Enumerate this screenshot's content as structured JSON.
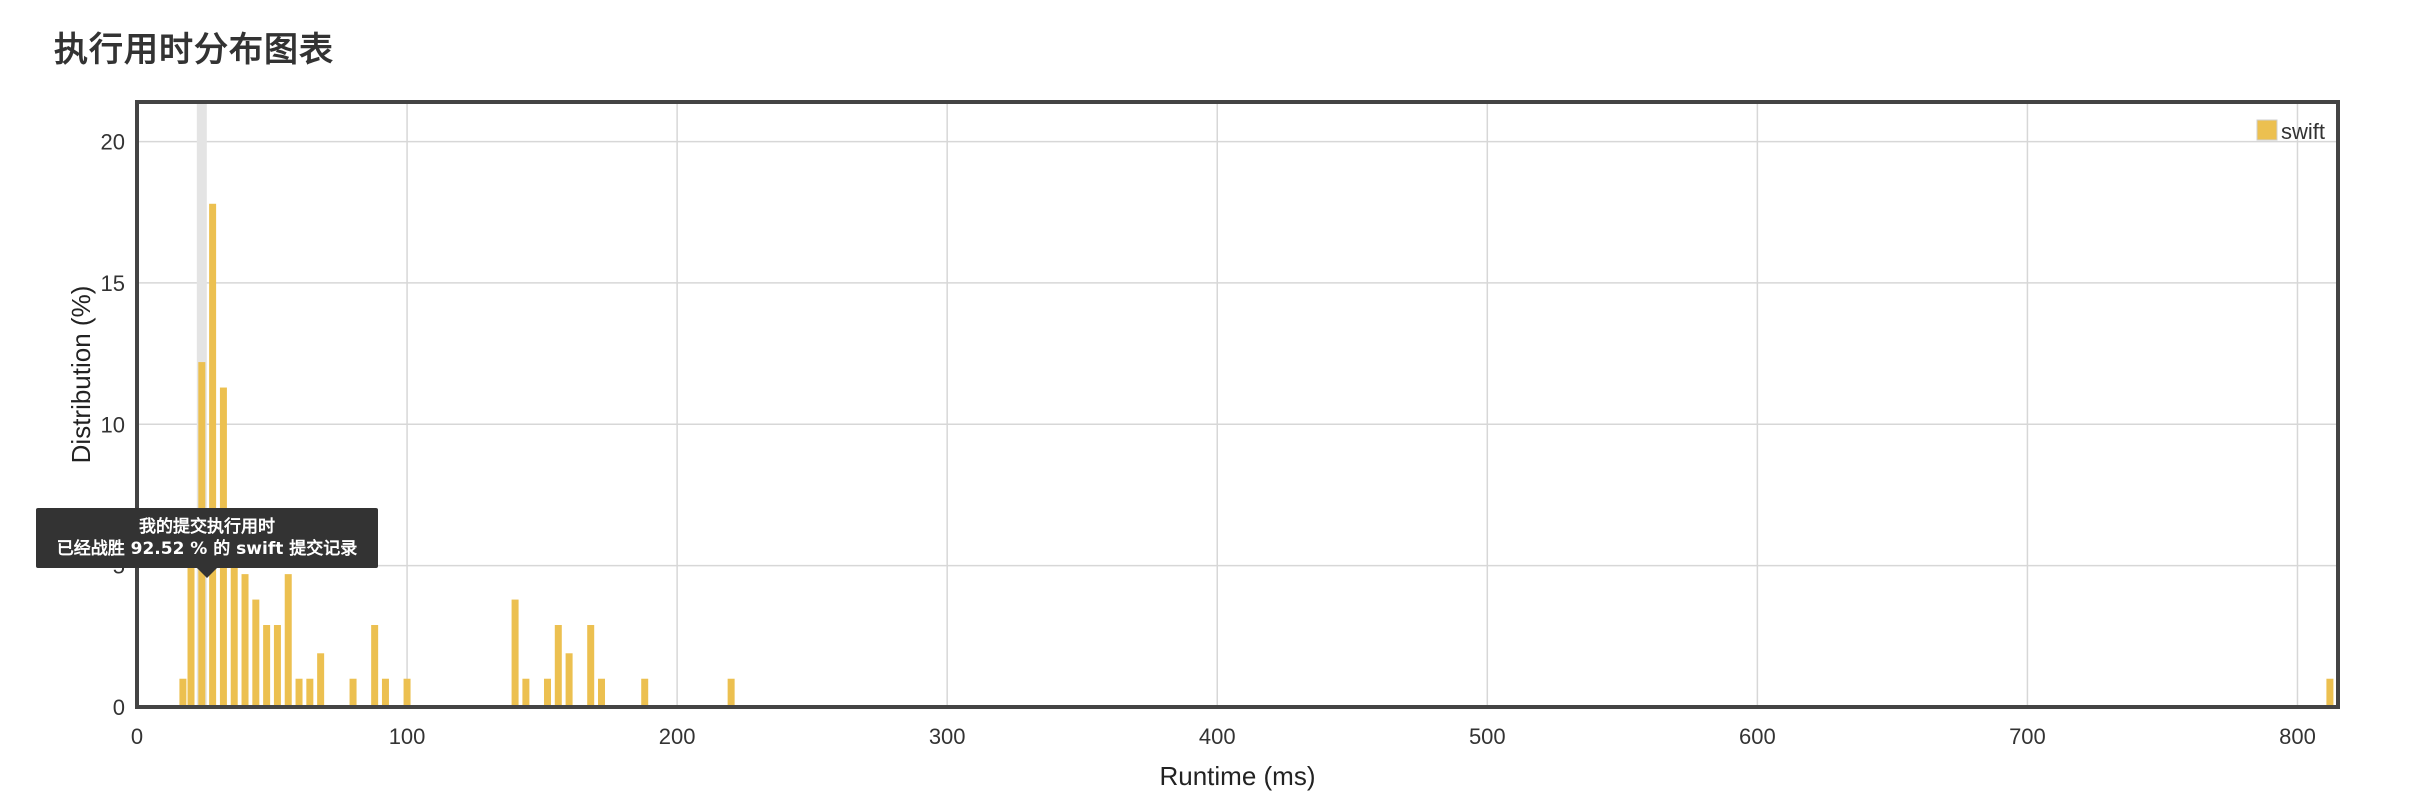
{
  "page": {
    "title": "执行用时分布图表"
  },
  "tooltip": {
    "line1": "我的提交执行用时",
    "line2": "已经战胜 92.52 % 的 swift 提交记录"
  },
  "colors": {
    "bar": "#ecc050",
    "highlight": "#e4e4e4",
    "grid": "#d7d7d7",
    "frame": "#444444"
  },
  "chart_data": {
    "type": "bar",
    "xlabel": "Runtime (ms)",
    "ylabel": "Distribution (%)",
    "xlim": [
      0,
      815
    ],
    "ylim": [
      0,
      21.4
    ],
    "x_ticks": [
      0,
      100,
      200,
      300,
      400,
      500,
      600,
      700,
      800
    ],
    "y_ticks": [
      0,
      5,
      10,
      15,
      20
    ],
    "grid": true,
    "legend_position": "top-right",
    "highlight_x": 24,
    "series": [
      {
        "name": "swift",
        "x": [
          17,
          20,
          24,
          28,
          32,
          36,
          40,
          44,
          48,
          52,
          56,
          60,
          64,
          68,
          80,
          88,
          92,
          100,
          140,
          144,
          152,
          156,
          160,
          168,
          172,
          188,
          220,
          812
        ],
        "values": [
          1.0,
          5.0,
          12.2,
          17.8,
          11.3,
          5.0,
          4.7,
          3.8,
          2.9,
          2.9,
          4.7,
          1.0,
          1.0,
          1.9,
          1.0,
          2.9,
          1.0,
          1.0,
          3.8,
          1.0,
          1.0,
          2.9,
          1.9,
          2.9,
          1.0,
          1.0,
          1.0,
          1.0
        ]
      }
    ]
  }
}
